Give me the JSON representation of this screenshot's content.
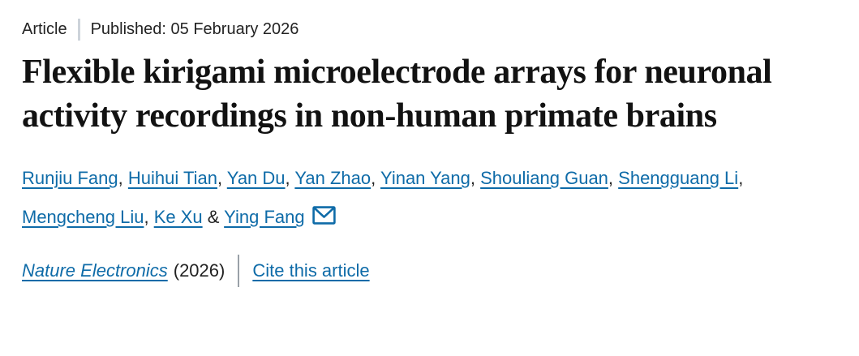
{
  "meta": {
    "label": "Article",
    "published": "Published: 05 February 2026"
  },
  "title": "Flexible kirigami microelectrode arrays for neuronal activity recordings in non-human primate brains",
  "authors": {
    "names": [
      "Runjiu Fang",
      "Huihui Tian",
      "Yan Du",
      "Yan Zhao",
      "Yinan Yang",
      "Shouliang Guan",
      "Shengguang Li",
      "Mengcheng Liu",
      "Ke Xu",
      "Ying Fang"
    ],
    "comma_separator": ", ",
    "amp_separator": " & ",
    "corresponding_icon": "envelope-icon"
  },
  "citation": {
    "journal": "Nature Electronics",
    "year": "(2026)",
    "cite_link": "Cite this article"
  },
  "colors": {
    "link_blue": "#0e6ba8",
    "body_text": "#222222",
    "title_text": "#121212",
    "meta_divider": "#cdd3da",
    "cite_divider": "#9aa1a8",
    "background": "#ffffff"
  }
}
